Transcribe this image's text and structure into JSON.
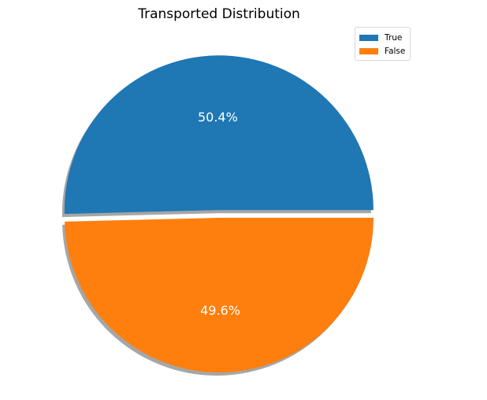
{
  "chart_data": {
    "type": "pie",
    "title": "Transported Distribution",
    "labels": [
      "True",
      "False"
    ],
    "values": [
      50.4,
      49.6
    ],
    "value_labels": [
      "50.4%",
      "49.6%"
    ],
    "colors": [
      "#1f77b4",
      "#ff7f0e"
    ],
    "explode": [
      0.05,
      0
    ],
    "shadow": true,
    "label_color": "#ffffff",
    "legend": {
      "placement": "top-right",
      "entries": [
        "True",
        "False"
      ]
    }
  }
}
